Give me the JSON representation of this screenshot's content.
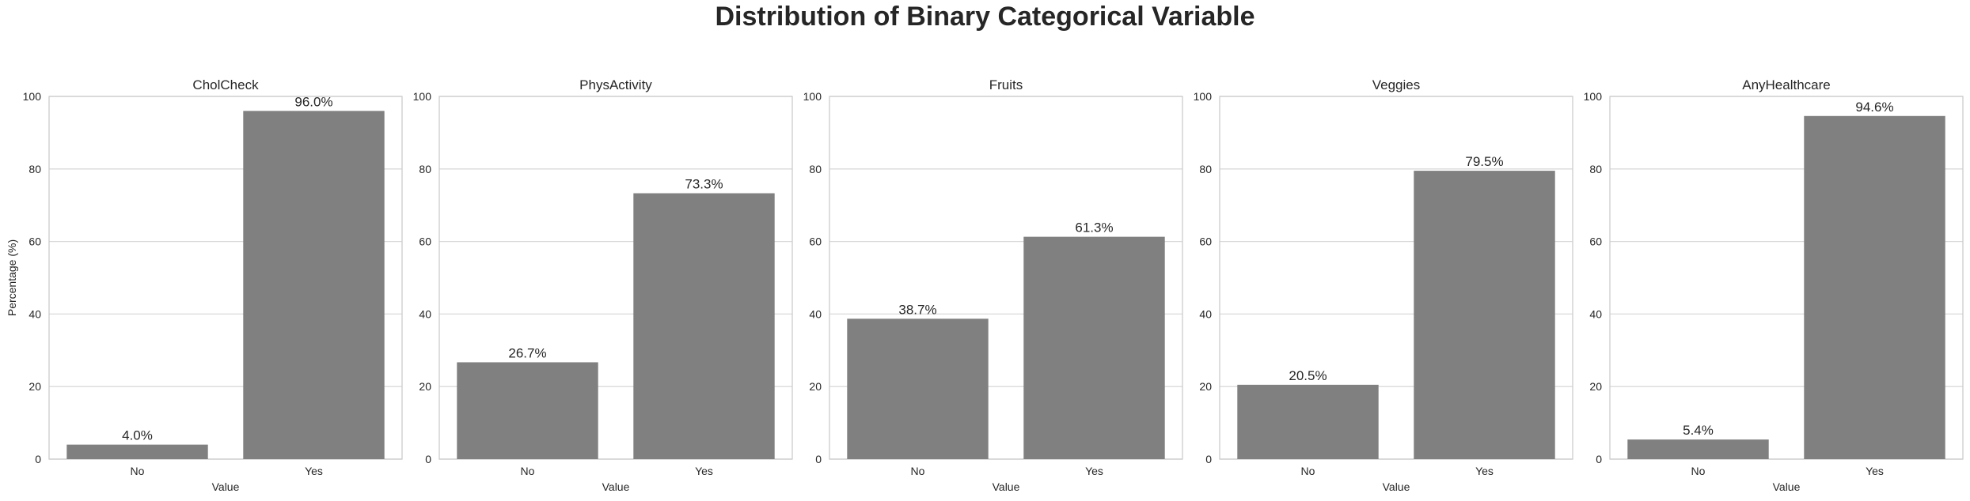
{
  "figure_title": "Distribution of Binary Categorical Variable",
  "colors": {
    "bar": "#808080",
    "grid": "#d9d9d9",
    "frame": "#cccccc",
    "text": "#262626"
  },
  "chart_data": [
    {
      "type": "bar",
      "title": "CholCheck",
      "categories": [
        "No",
        "Yes"
      ],
      "values": [
        4.0,
        96.0
      ],
      "labels": [
        "4.0%",
        "96.0%"
      ],
      "xlabel": "Value",
      "ylabel": "Percentage (%)",
      "ylim": [
        0,
        100
      ],
      "yticks": [
        0,
        20,
        40,
        60,
        80,
        100
      ],
      "grid": true
    },
    {
      "type": "bar",
      "title": "PhysActivity",
      "categories": [
        "No",
        "Yes"
      ],
      "values": [
        26.7,
        73.3
      ],
      "labels": [
        "26.7%",
        "73.3%"
      ],
      "xlabel": "Value",
      "ylabel": "",
      "ylim": [
        0,
        100
      ],
      "yticks": [
        0,
        20,
        40,
        60,
        80,
        100
      ],
      "grid": true
    },
    {
      "type": "bar",
      "title": "Fruits",
      "categories": [
        "No",
        "Yes"
      ],
      "values": [
        38.7,
        61.3
      ],
      "labels": [
        "38.7%",
        "61.3%"
      ],
      "xlabel": "Value",
      "ylabel": "",
      "ylim": [
        0,
        100
      ],
      "yticks": [
        0,
        20,
        40,
        60,
        80,
        100
      ],
      "grid": true
    },
    {
      "type": "bar",
      "title": "Veggies",
      "categories": [
        "No",
        "Yes"
      ],
      "values": [
        20.5,
        79.5
      ],
      "labels": [
        "20.5%",
        "79.5%"
      ],
      "xlabel": "Value",
      "ylabel": "",
      "ylim": [
        0,
        100
      ],
      "yticks": [
        0,
        20,
        40,
        60,
        80,
        100
      ],
      "grid": true
    },
    {
      "type": "bar",
      "title": "AnyHealthcare",
      "categories": [
        "No",
        "Yes"
      ],
      "values": [
        5.4,
        94.6
      ],
      "labels": [
        "5.4%",
        "94.6%"
      ],
      "xlabel": "Value",
      "ylabel": "",
      "ylim": [
        0,
        100
      ],
      "yticks": [
        0,
        20,
        40,
        60,
        80,
        100
      ],
      "grid": true
    }
  ]
}
